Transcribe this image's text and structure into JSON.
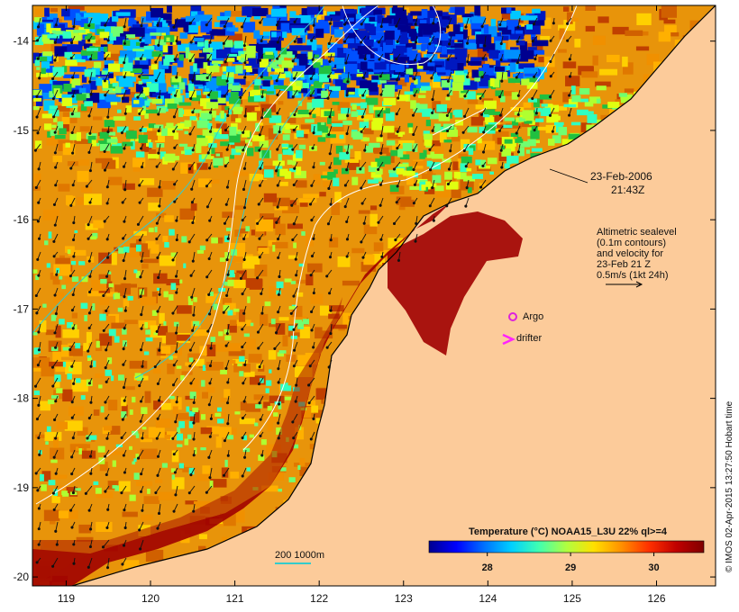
{
  "map": {
    "type": "satellite_sst",
    "date": "23-Feb-2006",
    "time": "21:43Z",
    "lon_ticks": [
      "119",
      "120",
      "121",
      "122",
      "123",
      "124",
      "125",
      "126"
    ],
    "lat_ticks": [
      "-14",
      "-15",
      "-16",
      "-17",
      "-18",
      "-19",
      "-20"
    ],
    "lon_range": [
      118.6,
      126.7
    ],
    "lat_range": [
      -20.1,
      -13.6
    ],
    "land_color": "#fccb9a"
  },
  "altimetry": {
    "line1": "Altimetric sealevel",
    "line2": "(0.1m contours)",
    "line3": "and velocity for",
    "line4": "23-Feb 21 Z",
    "line5": "0.5m/s (1kt 24h)"
  },
  "legend": {
    "argo_label": "Argo",
    "argo_color": "#dd22dd",
    "drifter_label": "drifter",
    "drifter_color": "#ff22ff",
    "depth_label": "200  1000m",
    "depth_color": "#33cccc"
  },
  "colorbar": {
    "title": "Temperature (°C) NOAA15_L3U 22% ql>=4",
    "ticks": [
      "28",
      "29",
      "30"
    ],
    "tick_values": [
      28,
      29,
      30
    ],
    "range": [
      27.3,
      30.6
    ],
    "colors": [
      "#00008f",
      "#0000ff",
      "#0070ff",
      "#00d0ff",
      "#40ffb0",
      "#b0ff40",
      "#ffe000",
      "#ff9000",
      "#ff3000",
      "#c00000",
      "#800000"
    ]
  },
  "credit": "© IMOS 02-Apr-2015 13:27:50 Hobart time"
}
